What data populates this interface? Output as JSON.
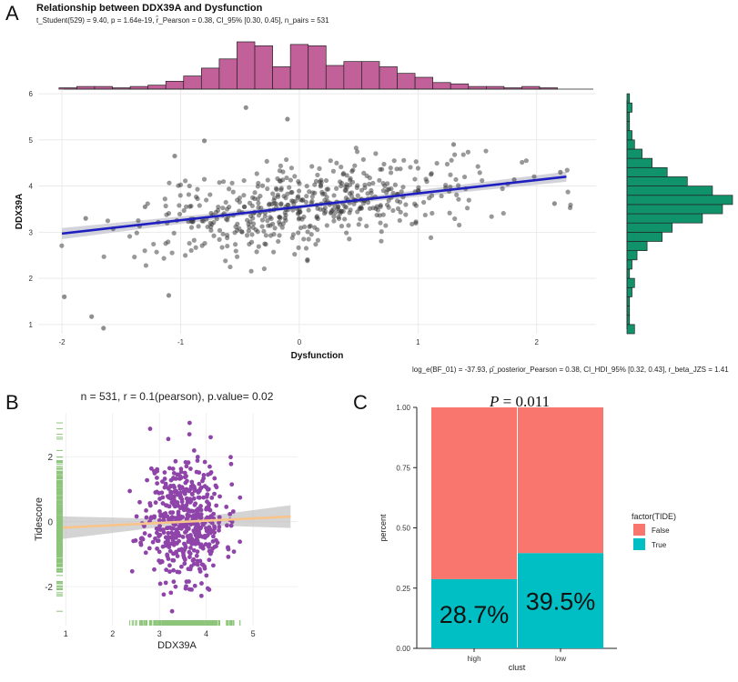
{
  "panels": {
    "a": "A",
    "b": "B",
    "c": "C"
  },
  "colors": {
    "point": "#333333",
    "fit_a": "#1f1fc0",
    "ci": "#c8c8d2",
    "hist_top": "#c2609a",
    "hist_right": "#10936a",
    "point_b": "#8e44a8",
    "fit_b": "#f9c48a",
    "rug_b": "#8dc57b",
    "false_bar": "#f8766d",
    "true_bar": "#00bfc4"
  },
  "subtitle_a": {
    "title": "Relationship between DDX39A and Dysfunction",
    "stats": "t_Student(529) = 9.40, p = 1.64e-19, r̂_Pearson = 0.38, CI_95% [0.30, 0.45], n_pairs = 531",
    "bayes": "log_e(BF_01) = -37.93, ρ̂_posterior_Pearson = 0.38, CI_HDI_95% [0.32, 0.43], r_beta_JZS = 1.41"
  },
  "pvalue_c": {
    "p": "P",
    "text": " = 0.011"
  },
  "chart_data": [
    {
      "type": "scatter",
      "title": "Relationship between DDX39A and Dysfunction",
      "xlabel": "Dysfunction",
      "ylabel": "DDX39A",
      "xlim": [
        -2.2,
        2.5
      ],
      "ylim": [
        0.8,
        6.1
      ],
      "xticks": [
        -2,
        -1,
        0,
        1,
        2
      ],
      "yticks": [
        1,
        2,
        3,
        4,
        5,
        6
      ],
      "n": 531,
      "seed": 7,
      "center": [
        0.1,
        3.55
      ],
      "spread": [
        0.7,
        0.45
      ],
      "fit": {
        "slope": 0.29,
        "intercept": 3.55,
        "x_range": [
          -2.0,
          2.25
        ]
      },
      "extra_points": [
        [
          -1.98,
          1.6
        ],
        [
          -1.75,
          1.17
        ],
        [
          -1.65,
          0.92
        ],
        [
          -1.1,
          1.63
        ],
        [
          -0.45,
          5.7
        ],
        [
          -0.1,
          5.45
        ],
        [
          -1.05,
          4.65
        ],
        [
          -0.8,
          4.98
        ],
        [
          2.15,
          3.62
        ],
        [
          1.3,
          4.9
        ],
        [
          2.2,
          4.3
        ],
        [
          -1.8,
          3.3
        ],
        [
          -1.3,
          3.55
        ]
      ],
      "hist_top": {
        "bins": [
          -1.95,
          -1.8,
          -1.65,
          -1.5,
          -1.35,
          -1.2,
          -1.05,
          -0.9,
          -0.75,
          -0.6,
          -0.45,
          -0.3,
          -0.15,
          0.0,
          0.15,
          0.3,
          0.45,
          0.6,
          0.75,
          0.9,
          1.05,
          1.2,
          1.35,
          1.5,
          1.65,
          1.8,
          1.95,
          2.1,
          2.25
        ],
        "counts": [
          1,
          2,
          2,
          1,
          2,
          3,
          6,
          10,
          16,
          23,
          36,
          33,
          17,
          34,
          33,
          18,
          21,
          21,
          17,
          12,
          9,
          5,
          4,
          2,
          2,
          1,
          2,
          1,
          0
        ]
      },
      "hist_right": {
        "bins": [
          0.9,
          1.1,
          1.3,
          1.5,
          1.7,
          1.9,
          2.1,
          2.3,
          2.5,
          2.7,
          2.9,
          3.1,
          3.3,
          3.5,
          3.7,
          3.9,
          4.1,
          4.3,
          4.5,
          4.7,
          4.9,
          5.1,
          5.3,
          5.5,
          5.7,
          5.9
        ],
        "counts": [
          3,
          1,
          1,
          1,
          2,
          3,
          1,
          2,
          4,
          8,
          14,
          18,
          30,
          38,
          42,
          34,
          24,
          16,
          10,
          6,
          3,
          2,
          1,
          1,
          2,
          1
        ]
      }
    },
    {
      "type": "scatter",
      "title": "n = 531, r = 0.1(pearson), p.value= 0.02",
      "xlabel": "DDX39A",
      "ylabel": "Tidescore",
      "xlim": [
        0.8,
        5.95
      ],
      "ylim": [
        -3.2,
        3.35
      ],
      "xticks": [
        1,
        2,
        3,
        4,
        5
      ],
      "yticks": [
        -2,
        0,
        2
      ],
      "n": 531,
      "seed": 11,
      "center": [
        3.55,
        0.1
      ],
      "spread": [
        0.42,
        0.95
      ],
      "fit": {
        "slope": 0.07,
        "intercept": -0.25,
        "x_range": [
          0.9,
          5.8
        ]
      }
    },
    {
      "type": "bar",
      "title": "P = 0.011",
      "xlabel": "clust",
      "ylabel": "percent",
      "categories": [
        "high",
        "low"
      ],
      "series": [
        {
          "name": "False",
          "values": [
            0.713,
            0.605
          ]
        },
        {
          "name": "True",
          "values": [
            0.287,
            0.395
          ]
        }
      ],
      "data_labels": [
        "28.7%",
        "39.5%"
      ],
      "legend_title": "factor(TIDE)",
      "ylim": [
        0,
        1
      ],
      "yticks": [
        "0.00",
        "0.25",
        "0.50",
        "0.75",
        "1.00"
      ]
    }
  ]
}
